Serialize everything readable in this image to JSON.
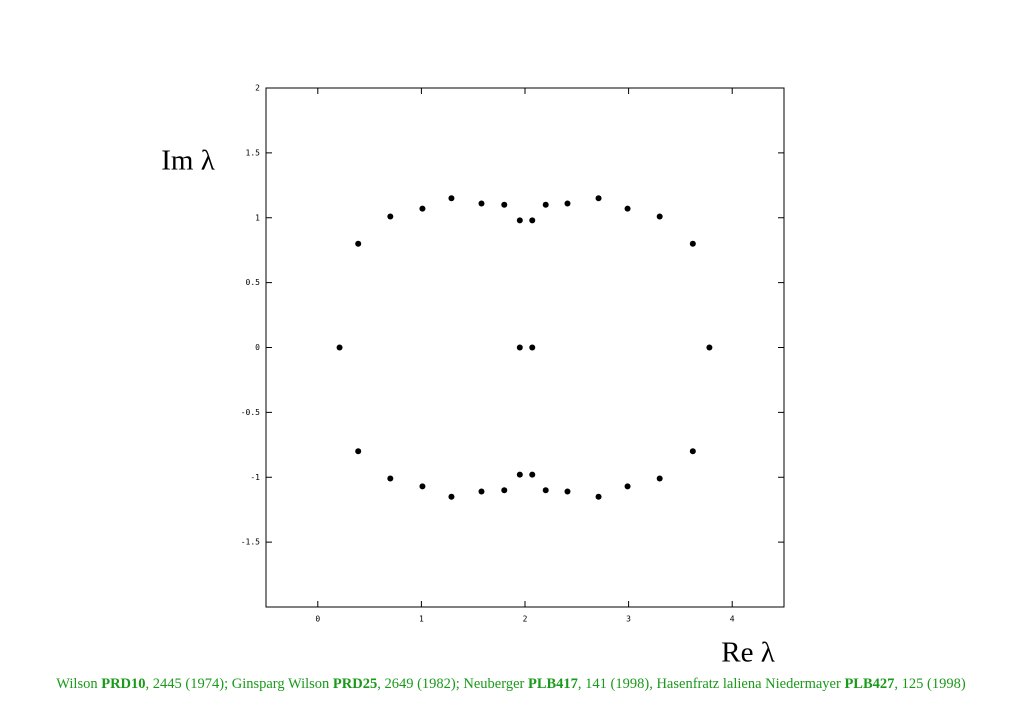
{
  "chart_data": {
    "type": "scatter",
    "xlabel": "Re λ",
    "ylabel": "Im λ",
    "xlim": [
      -0.5,
      4.5
    ],
    "ylim": [
      -2,
      2
    ],
    "xticks": [
      0,
      1,
      2,
      3,
      4
    ],
    "yticks": [
      2,
      1.5,
      1,
      0.5,
      0,
      -0.5,
      -1,
      -1.5
    ],
    "color": "#000000",
    "x": [
      0.21,
      0.39,
      0.7,
      1.01,
      1.29,
      1.58,
      1.8,
      1.95,
      2.07,
      2.2,
      2.41,
      2.71,
      2.99,
      3.3,
      3.62,
      3.78,
      1.95,
      2.07,
      0.39,
      0.7,
      1.01,
      1.29,
      1.58,
      1.8,
      1.95,
      2.07,
      2.2,
      2.41,
      2.71,
      2.99,
      3.3,
      3.62
    ],
    "y": [
      0,
      0.8,
      1.01,
      1.07,
      1.15,
      1.11,
      1.1,
      0.98,
      0.98,
      1.1,
      1.11,
      1.15,
      1.07,
      1.01,
      0.8,
      0,
      0,
      0,
      -0.8,
      -1.01,
      -1.07,
      -1.15,
      -1.11,
      -1.1,
      -0.98,
      -0.98,
      -1.1,
      -1.11,
      -1.15,
      -1.07,
      -1.01,
      -0.8
    ]
  },
  "footer": [
    {
      "text": "Wilson "
    },
    {
      "text": "PRD10",
      "bold": true
    },
    {
      "text": ", 2445 (1974); Ginsparg Wilson "
    },
    {
      "text": "PRD25",
      "bold": true
    },
    {
      "text": ", 2649 (1982); Neuberger "
    },
    {
      "text": "PLB417",
      "bold": true
    },
    {
      "text": ", 141 (1998), Hasenfratz laliena Niedermayer "
    },
    {
      "text": "PLB427",
      "bold": true
    },
    {
      "text": ", 125 (1998)"
    }
  ]
}
